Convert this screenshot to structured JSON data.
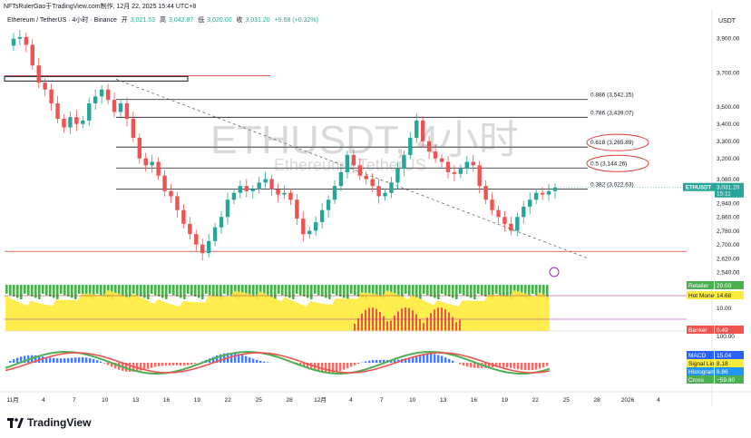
{
  "caption": "NFTsRulerGao于TradingView.com制作, 12月 22, 2025 15:44 UTC+8",
  "header": {
    "symbol": "Ethereum / TetherUS · 4小时 · Binance",
    "open_label": "开",
    "open": "3,021.53",
    "high_label": "高",
    "high": "3,042.87",
    "low_label": "低",
    "low": "3,020.00",
    "close_label": "收",
    "close": "3,031.20",
    "change": "+9.68 (+0.32%)"
  },
  "unit": "USDT",
  "watermark": {
    "main": "ETHUSDT, 4小时",
    "sub": "Ethereum / TetherUS"
  },
  "brand": "TradingView",
  "colors": {
    "up": "#26a69a",
    "down": "#ef5350",
    "fib": "#131722",
    "trend": "#555555",
    "red_line": "#e03a3a"
  },
  "chart_data": [
    {
      "type": "candlestick",
      "title": "Ethereum / TetherUS · 4小时 · Binance",
      "y_axis": {
        "ticks": [
          "3,900.00",
          "3,700.00",
          "3,500.00",
          "3,400.00",
          "3,300.00",
          "3,200.00",
          "3,080.00",
          "2,940.00",
          "2,860.00",
          "2,780.00",
          "2,700.00",
          "2,620.00",
          "2,540.00"
        ],
        "ylim": [
          2540,
          3920
        ],
        "label": "USDT"
      },
      "x_axis": {
        "ticks": [
          "11月",
          "4",
          "7",
          "10",
          "13",
          "16",
          "19",
          "22",
          "25",
          "28",
          "12月",
          "4",
          "7",
          "10",
          "13",
          "16",
          "19",
          "22",
          "25",
          "28",
          "2026",
          "4"
        ]
      },
      "close_path": [
        3855,
        3895,
        3905,
        3860,
        3740,
        3640,
        3600,
        3520,
        3430,
        3380,
        3440,
        3400,
        3420,
        3520,
        3560,
        3600,
        3540,
        3470,
        3520,
        3430,
        3320,
        3200,
        3160,
        3180,
        3100,
        3010,
        2980,
        2900,
        2820,
        2760,
        2700,
        2650,
        2720,
        2800,
        2860,
        2960,
        3000,
        3040,
        3010,
        3020,
        3060,
        3080,
        3020,
        2990,
        3000,
        2960,
        2850,
        2760,
        2780,
        2830,
        2900,
        2960,
        3040,
        3120,
        3220,
        3160,
        3100,
        3080,
        3040,
        2980,
        3000,
        3060,
        3140,
        3220,
        3320,
        3420,
        3300,
        3240,
        3200,
        3180,
        3120,
        3110,
        3140,
        3180,
        3160,
        3040,
        2960,
        2900,
        2860,
        2820,
        2780,
        2860,
        2920,
        2960,
        3000,
        2990,
        3010,
        3031
      ],
      "current_price": {
        "label": "ETHUSDT",
        "value": "3,031.20",
        "timer": "15:11"
      },
      "fib_levels": [
        {
          "ratio": "0.886",
          "price": "3,542.15",
          "value": 3542.15
        },
        {
          "ratio": "0.786",
          "price": "3,439.07",
          "value": 3439.07
        },
        {
          "ratio": "0.618",
          "price": "3,265.89",
          "value": 3265.89,
          "circled": true
        },
        {
          "ratio": "0.5",
          "price": "3,144.26",
          "value": 3144.26,
          "circled": true
        },
        {
          "ratio": "0.382",
          "price": "3,022.63",
          "value": 3022.63
        }
      ],
      "horizontal_lines": [
        3680,
        2660
      ],
      "annotations": [
        "0.886 (3,542.15)",
        "0.786 (3,439.07)",
        "0.618 (3,265.89)",
        "0.5 (3,144.26)",
        "0.382 (3,022.63)"
      ]
    },
    {
      "type": "area",
      "indicator_labels": [
        {
          "name": "Retailer",
          "value": "20.00"
        },
        {
          "name": "Hot Money",
          "value": "14.68"
        },
        {
          "name": "Banker",
          "value": "0.49"
        }
      ],
      "y_ticks": [
        "10.00",
        "100.00"
      ]
    },
    {
      "type": "bar",
      "indicator_labels": [
        {
          "name": "MACD",
          "value": "15.04"
        },
        {
          "name": "Signal Line",
          "value": "8.18"
        },
        {
          "name": "Histogram",
          "value": "6.86"
        },
        {
          "name": "Cross",
          "value": "−59.80"
        }
      ]
    }
  ]
}
